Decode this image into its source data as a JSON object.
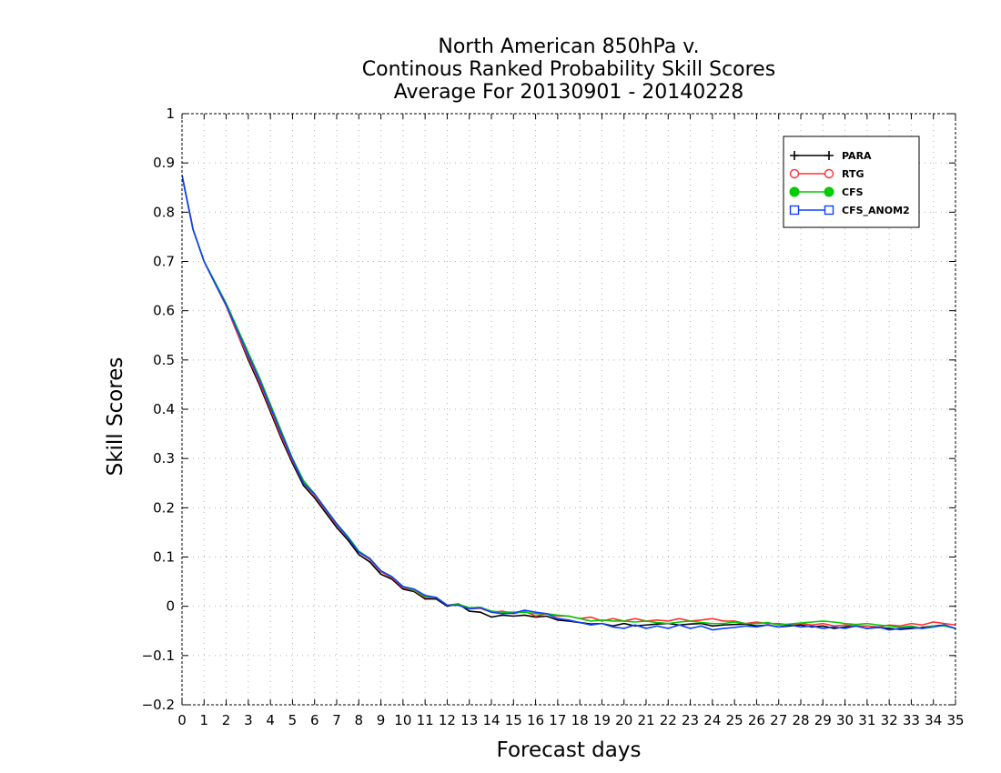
{
  "chart_data": {
    "type": "line",
    "title": [
      "North American 850hPa v.",
      "Continous Ranked Probability Skill Scores",
      "Average For 20130901 - 20140228"
    ],
    "xlabel": "Forecast days",
    "ylabel": "Skill Scores",
    "xlim": [
      0,
      35
    ],
    "ylim": [
      -0.2,
      1
    ],
    "xticks": [
      0,
      1,
      2,
      3,
      4,
      5,
      6,
      7,
      8,
      9,
      10,
      11,
      12,
      13,
      14,
      15,
      16,
      17,
      18,
      19,
      20,
      21,
      22,
      23,
      24,
      25,
      26,
      27,
      28,
      29,
      30,
      31,
      32,
      33,
      34,
      35
    ],
    "xtick_labels": [
      "0",
      "1",
      "2",
      "3",
      "4",
      "5",
      "6",
      "7",
      "8",
      "9",
      "10",
      "11",
      "12",
      "13",
      "14",
      "15",
      "16",
      "17",
      "18",
      "19",
      "20",
      "21",
      "22",
      "23",
      "24",
      "25",
      "26",
      "27",
      "28",
      "29",
      "30",
      "31",
      "32",
      "33",
      "34",
      "35"
    ],
    "yticks": [
      -0.2,
      -0.1,
      0,
      0.1,
      0.2,
      0.3,
      0.4,
      0.5,
      0.6,
      0.7,
      0.8,
      0.9,
      1
    ],
    "ytick_labels": [
      "−0.2",
      "−0.1",
      "0",
      "0.1",
      "0.2",
      "0.3",
      "0.4",
      "0.5",
      "0.6",
      "0.7",
      "0.8",
      "0.9",
      "1"
    ],
    "grid": true,
    "legend_position": "top-right",
    "x": [
      0,
      0.5,
      1,
      1.5,
      2,
      2.5,
      3,
      3.5,
      4,
      4.5,
      5,
      5.5,
      6,
      6.5,
      7,
      7.5,
      8,
      8.5,
      9,
      9.5,
      10,
      10.5,
      11,
      11.5,
      12,
      12.5,
      13,
      13.5,
      14,
      14.5,
      15,
      15.5,
      16,
      16.5,
      17,
      17.5,
      18,
      18.5,
      19,
      19.5,
      20,
      20.5,
      21,
      21.5,
      22,
      22.5,
      23,
      23.5,
      24,
      24.5,
      25,
      25.5,
      26,
      26.5,
      27,
      27.5,
      28,
      28.5,
      29,
      29.5,
      30,
      30.5,
      31,
      31.5,
      32,
      32.5,
      33,
      33.5,
      34,
      34.5,
      35
    ],
    "series": [
      {
        "name": "PARA",
        "color": "#000000",
        "marker": "plus",
        "values": [
          0.875,
          0.765,
          0.7,
          0.655,
          0.61,
          0.555,
          0.5,
          0.45,
          0.395,
          0.34,
          0.29,
          0.245,
          0.22,
          0.19,
          0.16,
          0.135,
          0.105,
          0.09,
          0.065,
          0.055,
          0.035,
          0.03,
          0.015,
          0.015,
          0.0,
          0.005,
          -0.01,
          -0.012,
          -0.022,
          -0.018,
          -0.02,
          -0.018,
          -0.022,
          -0.02,
          -0.028,
          -0.03,
          -0.033,
          -0.036,
          -0.035,
          -0.04,
          -0.035,
          -0.04,
          -0.038,
          -0.036,
          -0.035,
          -0.038,
          -0.036,
          -0.035,
          -0.04,
          -0.038,
          -0.037,
          -0.036,
          -0.04,
          -0.038,
          -0.042,
          -0.04,
          -0.038,
          -0.042,
          -0.04,
          -0.045,
          -0.042,
          -0.04,
          -0.045,
          -0.043,
          -0.045,
          -0.047,
          -0.045,
          -0.043,
          -0.04,
          -0.038,
          -0.045
        ]
      },
      {
        "name": "RTG",
        "color": "#ff3030",
        "marker": "circle-open",
        "values": [
          0.875,
          0.765,
          0.7,
          0.655,
          0.61,
          0.555,
          0.505,
          0.455,
          0.4,
          0.345,
          0.295,
          0.25,
          0.225,
          0.195,
          0.165,
          0.14,
          0.11,
          0.095,
          0.07,
          0.058,
          0.038,
          0.032,
          0.018,
          0.018,
          0.002,
          0.005,
          -0.005,
          -0.004,
          -0.012,
          -0.01,
          -0.015,
          -0.01,
          -0.02,
          -0.015,
          -0.02,
          -0.02,
          -0.025,
          -0.022,
          -0.03,
          -0.025,
          -0.03,
          -0.025,
          -0.03,
          -0.028,
          -0.03,
          -0.025,
          -0.03,
          -0.028,
          -0.025,
          -0.03,
          -0.03,
          -0.035,
          -0.032,
          -0.035,
          -0.035,
          -0.038,
          -0.035,
          -0.038,
          -0.035,
          -0.04,
          -0.038,
          -0.04,
          -0.04,
          -0.042,
          -0.038,
          -0.04,
          -0.035,
          -0.038,
          -0.032,
          -0.035,
          -0.038
        ]
      },
      {
        "name": "CFS",
        "color": "#00cc00",
        "marker": "circle-filled",
        "values": [
          0.875,
          0.765,
          0.7,
          0.658,
          0.615,
          0.565,
          0.515,
          0.465,
          0.41,
          0.355,
          0.3,
          0.255,
          0.228,
          0.198,
          0.168,
          0.142,
          0.112,
          0.097,
          0.072,
          0.06,
          0.04,
          0.033,
          0.02,
          0.018,
          0.002,
          0.004,
          -0.003,
          -0.002,
          -0.01,
          -0.012,
          -0.012,
          -0.012,
          -0.015,
          -0.015,
          -0.018,
          -0.02,
          -0.025,
          -0.03,
          -0.028,
          -0.03,
          -0.03,
          -0.032,
          -0.03,
          -0.033,
          -0.035,
          -0.032,
          -0.03,
          -0.033,
          -0.035,
          -0.035,
          -0.032,
          -0.035,
          -0.035,
          -0.033,
          -0.038,
          -0.036,
          -0.034,
          -0.032,
          -0.03,
          -0.032,
          -0.035,
          -0.037,
          -0.035,
          -0.038,
          -0.04,
          -0.043,
          -0.04,
          -0.045,
          -0.04,
          -0.04,
          -0.045
        ]
      },
      {
        "name": "CFS_ANOM2",
        "color": "#1040ff",
        "marker": "square-open",
        "values": [
          0.875,
          0.765,
          0.7,
          0.655,
          0.612,
          0.56,
          0.51,
          0.46,
          0.405,
          0.35,
          0.298,
          0.25,
          0.228,
          0.197,
          0.167,
          0.14,
          0.11,
          0.097,
          0.072,
          0.06,
          0.04,
          0.035,
          0.022,
          0.018,
          0.002,
          0.002,
          -0.005,
          -0.003,
          -0.012,
          -0.015,
          -0.014,
          -0.008,
          -0.012,
          -0.015,
          -0.025,
          -0.028,
          -0.033,
          -0.038,
          -0.035,
          -0.042,
          -0.045,
          -0.038,
          -0.045,
          -0.04,
          -0.045,
          -0.038,
          -0.045,
          -0.04,
          -0.048,
          -0.045,
          -0.043,
          -0.04,
          -0.042,
          -0.038,
          -0.042,
          -0.038,
          -0.042,
          -0.04,
          -0.045,
          -0.042,
          -0.045,
          -0.04,
          -0.045,
          -0.042,
          -0.048,
          -0.045,
          -0.043,
          -0.045,
          -0.042,
          -0.038,
          -0.045
        ]
      }
    ]
  }
}
